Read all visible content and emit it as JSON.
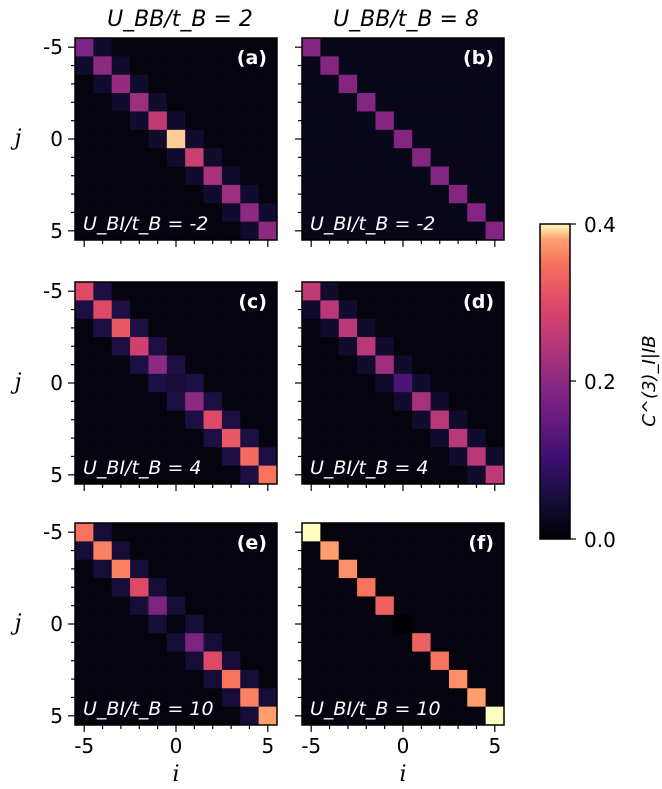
{
  "column_titles": [
    "U_BB/t_B = 2",
    "U_BB/t_B = 8"
  ],
  "colorbar": {
    "label": "C^(3)_I|IB",
    "ticks": [
      "0.0",
      "0.2",
      "0.4"
    ],
    "range": [
      0.0,
      0.4
    ],
    "colormap": "magma"
  },
  "axes_labels": {
    "x": "i",
    "y": "j"
  },
  "tick_labels": [
    "-5",
    "0",
    "5"
  ],
  "chart_data": [
    {
      "type": "heatmap",
      "panel": "(a)",
      "annotation": "U_BI/t_B = -2",
      "x_range": [
        -5,
        5
      ],
      "y_range": [
        -5,
        5
      ],
      "diagonal": [
        0.18,
        0.2,
        0.21,
        0.22,
        0.26,
        0.39,
        0.27,
        0.23,
        0.22,
        0.2,
        0.2
      ],
      "near_diagonal": 0.04,
      "background": 0.01
    },
    {
      "type": "heatmap",
      "panel": "(b)",
      "annotation": "U_BI/t_B = -2",
      "x_range": [
        -5,
        5
      ],
      "y_range": [
        -5,
        5
      ],
      "diagonal": [
        0.19,
        0.19,
        0.19,
        0.19,
        0.19,
        0.19,
        0.19,
        0.19,
        0.19,
        0.19,
        0.19
      ],
      "near_diagonal": 0.02,
      "background": 0.02
    },
    {
      "type": "heatmap",
      "panel": "(c)",
      "annotation": "U_BI/t_B = 4",
      "x_range": [
        -5,
        5
      ],
      "y_range": [
        -5,
        5
      ],
      "diagonal": [
        0.3,
        0.3,
        0.32,
        0.28,
        0.2,
        0.05,
        0.2,
        0.3,
        0.32,
        0.34,
        0.35
      ],
      "near_diagonal": 0.06,
      "background": 0.01
    },
    {
      "type": "heatmap",
      "panel": "(d)",
      "annotation": "U_BI/t_B = 4",
      "x_range": [
        -5,
        5
      ],
      "y_range": [
        -5,
        5
      ],
      "diagonal": [
        0.26,
        0.25,
        0.25,
        0.25,
        0.22,
        0.12,
        0.23,
        0.25,
        0.25,
        0.25,
        0.26
      ],
      "near_diagonal": 0.04,
      "background": 0.01
    },
    {
      "type": "heatmap",
      "panel": "(e)",
      "annotation": "U_BI/t_B = 10",
      "x_range": [
        -5,
        5
      ],
      "y_range": [
        -5,
        5
      ],
      "diagonal": [
        0.35,
        0.36,
        0.36,
        0.3,
        0.18,
        0.01,
        0.18,
        0.3,
        0.35,
        0.36,
        0.38
      ],
      "near_diagonal": 0.05,
      "background": 0.01
    },
    {
      "type": "heatmap",
      "panel": "(f)",
      "annotation": "U_BI/t_B = 10",
      "x_range": [
        -5,
        5
      ],
      "y_range": [
        -5,
        5
      ],
      "diagonal": [
        0.4,
        0.38,
        0.37,
        0.35,
        0.33,
        0.0,
        0.33,
        0.35,
        0.37,
        0.38,
        0.4
      ],
      "near_diagonal": 0.01,
      "background": 0.01
    }
  ]
}
